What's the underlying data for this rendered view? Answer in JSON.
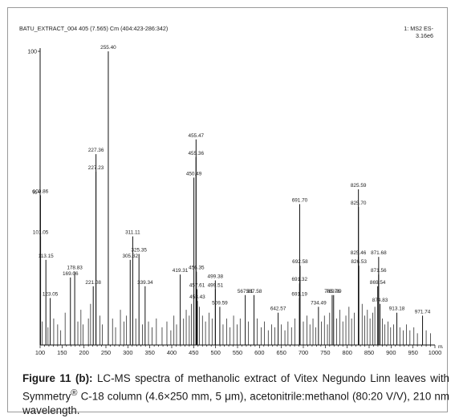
{
  "caption": {
    "label": "Figure 11 (b):",
    "text_part1": " LC-MS spectra of methanolic extract of Vitex Negundo Linn leaves with Symmetry",
    "sup": "®",
    "text_part2": " C-18 column (4.6×250 mm, 5 μm), acetonitrile:methanol (80:20 V/V), 210 nm wavelength."
  },
  "chart_data": {
    "type": "bar",
    "title": "BATU_EXTRACT_004 405 (7.565) Cm (404:423-286:342)",
    "top_right_lines": [
      "1: MS2 ES-",
      "3.16e6"
    ],
    "xlabel": "m/z",
    "ylabel": "",
    "xlim": [
      100,
      1000
    ],
    "ylim": [
      0,
      100
    ],
    "x_ticks": [
      100,
      150,
      200,
      250,
      300,
      350,
      400,
      450,
      500,
      550,
      600,
      650,
      700,
      750,
      800,
      850,
      900,
      950,
      1000
    ],
    "y_tick_labels": [
      {
        "value": 100,
        "text": "100"
      },
      {
        "value": 52,
        "text": "%"
      }
    ],
    "peaks": [
      {
        "mz": 255.4,
        "intensity": 100,
        "label": "255.40"
      },
      {
        "mz": 227.36,
        "intensity": 65,
        "label": "227.36"
      },
      {
        "mz": 227.23,
        "intensity": 59,
        "label": "227.23"
      },
      {
        "mz": 455.47,
        "intensity": 70,
        "label": "455.47"
      },
      {
        "mz": 455.36,
        "intensity": 64,
        "label": "455.36"
      },
      {
        "mz": 450.49,
        "intensity": 57,
        "label": "450.49"
      },
      {
        "mz": 100.86,
        "intensity": 51,
        "label": "100.86"
      },
      {
        "mz": 101.05,
        "intensity": 37,
        "label": "101.05"
      },
      {
        "mz": 113.15,
        "intensity": 29,
        "label": "113.15"
      },
      {
        "mz": 169.06,
        "intensity": 23,
        "label": "169.06"
      },
      {
        "mz": 178.83,
        "intensity": 25,
        "label": "178.83"
      },
      {
        "mz": 221.08,
        "intensity": 20,
        "label": "221.08"
      },
      {
        "mz": 123.05,
        "intensity": 16,
        "label": "123.05"
      },
      {
        "mz": 305.32,
        "intensity": 29,
        "label": "305.32"
      },
      {
        "mz": 311.11,
        "intensity": 37,
        "label": "311.11"
      },
      {
        "mz": 325.35,
        "intensity": 31,
        "label": "325.35"
      },
      {
        "mz": 339.34,
        "intensity": 20,
        "label": "339.34"
      },
      {
        "mz": 419.31,
        "intensity": 24,
        "label": "419.31"
      },
      {
        "mz": 456.35,
        "intensity": 25,
        "label": "456.35"
      },
      {
        "mz": 499.38,
        "intensity": 22,
        "label": "499.38"
      },
      {
        "mz": 457.61,
        "intensity": 19,
        "label": "457.61"
      },
      {
        "mz": 499.51,
        "intensity": 19,
        "label": "499.51"
      },
      {
        "mz": 458.43,
        "intensity": 15,
        "label": "458.43"
      },
      {
        "mz": 509.59,
        "intensity": 13,
        "label": "509.59"
      },
      {
        "mz": 567.61,
        "intensity": 17,
        "label": "567.61"
      },
      {
        "mz": 587.58,
        "intensity": 17,
        "label": "587.58"
      },
      {
        "mz": 642.57,
        "intensity": 11,
        "label": "642.57"
      },
      {
        "mz": 691.7,
        "intensity": 48,
        "label": "691.70"
      },
      {
        "mz": 692.58,
        "intensity": 27,
        "label": "692.58"
      },
      {
        "mz": 691.32,
        "intensity": 21,
        "label": "691.32"
      },
      {
        "mz": 691.19,
        "intensity": 16,
        "label": "691.19"
      },
      {
        "mz": 765.76,
        "intensity": 17,
        "label": "765.76"
      },
      {
        "mz": 734.49,
        "intensity": 13,
        "label": "734.49"
      },
      {
        "mz": 769.09,
        "intensity": 17,
        "label": "769.09"
      },
      {
        "mz": 825.59,
        "intensity": 53,
        "label": "825.59"
      },
      {
        "mz": 825.7,
        "intensity": 47,
        "label": "825.70"
      },
      {
        "mz": 825.46,
        "intensity": 30,
        "label": "825.46"
      },
      {
        "mz": 871.68,
        "intensity": 30,
        "label": "871.68"
      },
      {
        "mz": 826.53,
        "intensity": 27,
        "label": "826.53"
      },
      {
        "mz": 871.56,
        "intensity": 24,
        "label": "871.56"
      },
      {
        "mz": 869.54,
        "intensity": 20,
        "label": "869.54"
      },
      {
        "mz": 874.83,
        "intensity": 14,
        "label": "874.83"
      },
      {
        "mz": 913.18,
        "intensity": 11,
        "label": "913.18"
      },
      {
        "mz": 971.74,
        "intensity": 10,
        "label": "971.74"
      }
    ],
    "minor_peaks": [
      {
        "mz": 105,
        "intensity": 8
      },
      {
        "mz": 118,
        "intensity": 6
      },
      {
        "mz": 131,
        "intensity": 9
      },
      {
        "mz": 140,
        "intensity": 7
      },
      {
        "mz": 147,
        "intensity": 5
      },
      {
        "mz": 157,
        "intensity": 11
      },
      {
        "mz": 186,
        "intensity": 8
      },
      {
        "mz": 193,
        "intensity": 12
      },
      {
        "mz": 198,
        "intensity": 7
      },
      {
        "mz": 210,
        "intensity": 9
      },
      {
        "mz": 215,
        "intensity": 14
      },
      {
        "mz": 236,
        "intensity": 10
      },
      {
        "mz": 242,
        "intensity": 7
      },
      {
        "mz": 265,
        "intensity": 9
      },
      {
        "mz": 272,
        "intensity": 6
      },
      {
        "mz": 283,
        "intensity": 12
      },
      {
        "mz": 291,
        "intensity": 8
      },
      {
        "mz": 297,
        "intensity": 10
      },
      {
        "mz": 318,
        "intensity": 9
      },
      {
        "mz": 333,
        "intensity": 7
      },
      {
        "mz": 347,
        "intensity": 8
      },
      {
        "mz": 355,
        "intensity": 6
      },
      {
        "mz": 365,
        "intensity": 9
      },
      {
        "mz": 378,
        "intensity": 6
      },
      {
        "mz": 389,
        "intensity": 8
      },
      {
        "mz": 398,
        "intensity": 5
      },
      {
        "mz": 405,
        "intensity": 10
      },
      {
        "mz": 411,
        "intensity": 7
      },
      {
        "mz": 427,
        "intensity": 9
      },
      {
        "mz": 433,
        "intensity": 12
      },
      {
        "mz": 440,
        "intensity": 10
      },
      {
        "mz": 445,
        "intensity": 14
      },
      {
        "mz": 463,
        "intensity": 13
      },
      {
        "mz": 470,
        "intensity": 10
      },
      {
        "mz": 477,
        "intensity": 8
      },
      {
        "mz": 485,
        "intensity": 11
      },
      {
        "mz": 492,
        "intensity": 9
      },
      {
        "mz": 517,
        "intensity": 7
      },
      {
        "mz": 525,
        "intensity": 9
      },
      {
        "mz": 533,
        "intensity": 6
      },
      {
        "mz": 541,
        "intensity": 10
      },
      {
        "mz": 549,
        "intensity": 7
      },
      {
        "mz": 556,
        "intensity": 9
      },
      {
        "mz": 575,
        "intensity": 8
      },
      {
        "mz": 595,
        "intensity": 9
      },
      {
        "mz": 604,
        "intensity": 6
      },
      {
        "mz": 611,
        "intensity": 8
      },
      {
        "mz": 620,
        "intensity": 5
      },
      {
        "mz": 628,
        "intensity": 7
      },
      {
        "mz": 635,
        "intensity": 6
      },
      {
        "mz": 650,
        "intensity": 7
      },
      {
        "mz": 658,
        "intensity": 5
      },
      {
        "mz": 665,
        "intensity": 8
      },
      {
        "mz": 673,
        "intensity": 6
      },
      {
        "mz": 681,
        "intensity": 9
      },
      {
        "mz": 700,
        "intensity": 8
      },
      {
        "mz": 708,
        "intensity": 10
      },
      {
        "mz": 715,
        "intensity": 7
      },
      {
        "mz": 722,
        "intensity": 9
      },
      {
        "mz": 728,
        "intensity": 6
      },
      {
        "mz": 741,
        "intensity": 8
      },
      {
        "mz": 748,
        "intensity": 10
      },
      {
        "mz": 755,
        "intensity": 7
      },
      {
        "mz": 760,
        "intensity": 11
      },
      {
        "mz": 776,
        "intensity": 9
      },
      {
        "mz": 783,
        "intensity": 12
      },
      {
        "mz": 790,
        "intensity": 8
      },
      {
        "mz": 797,
        "intensity": 10
      },
      {
        "mz": 804,
        "intensity": 13
      },
      {
        "mz": 810,
        "intensity": 9
      },
      {
        "mz": 816,
        "intensity": 11
      },
      {
        "mz": 834,
        "intensity": 14
      },
      {
        "mz": 840,
        "intensity": 10
      },
      {
        "mz": 846,
        "intensity": 12
      },
      {
        "mz": 852,
        "intensity": 9
      },
      {
        "mz": 858,
        "intensity": 11
      },
      {
        "mz": 863,
        "intensity": 13
      },
      {
        "mz": 880,
        "intensity": 9
      },
      {
        "mz": 886,
        "intensity": 7
      },
      {
        "mz": 893,
        "intensity": 8
      },
      {
        "mz": 899,
        "intensity": 6
      },
      {
        "mz": 906,
        "intensity": 7
      },
      {
        "mz": 920,
        "intensity": 6
      },
      {
        "mz": 928,
        "intensity": 5
      },
      {
        "mz": 935,
        "intensity": 7
      },
      {
        "mz": 943,
        "intensity": 5
      },
      {
        "mz": 952,
        "intensity": 6
      },
      {
        "mz": 960,
        "intensity": 4
      },
      {
        "mz": 980,
        "intensity": 5
      },
      {
        "mz": 990,
        "intensity": 4
      }
    ],
    "grid": false,
    "colors": {
      "peak": "#111111",
      "axis": "#111111",
      "text": "#222222"
    }
  }
}
